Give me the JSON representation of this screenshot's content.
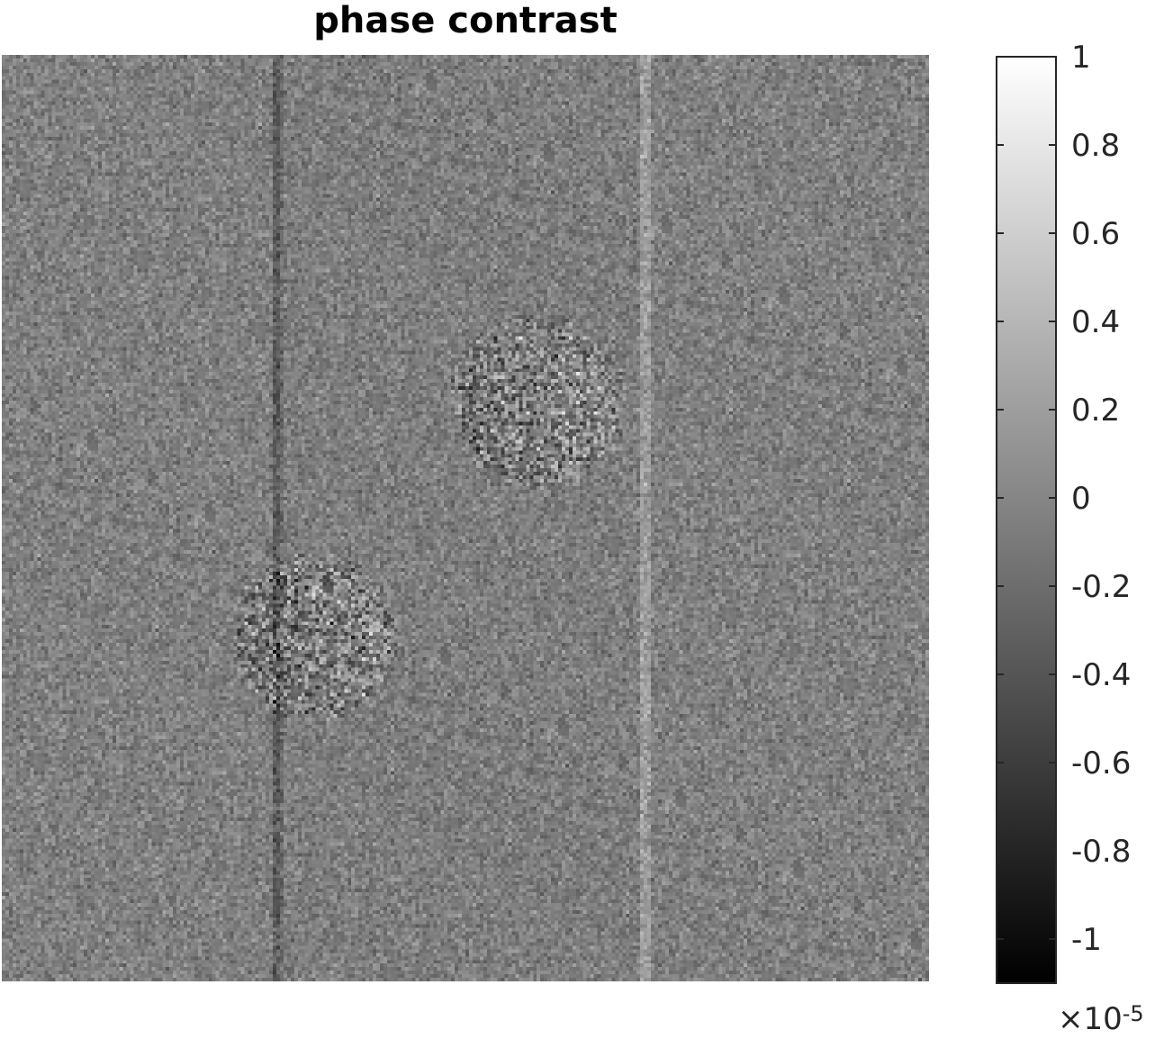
{
  "chart_data": {
    "type": "heatmap",
    "title": "phase contrast",
    "colormap": "gray",
    "colorbar": {
      "clim": [
        -1.1,
        1.0
      ],
      "ticks": [
        1,
        0.8,
        0.6,
        0.4,
        0.2,
        0,
        -0.2,
        -0.4,
        -0.6,
        -0.8,
        -1
      ],
      "tick_labels": [
        "1",
        "0.8",
        "0.6",
        "0.4",
        "0.2",
        "0",
        "-0.2",
        "-0.4",
        "-0.6",
        "-0.8",
        "-1"
      ],
      "exponent_prefix": "×10",
      "exponent": "-5"
    },
    "features": [
      {
        "kind": "vertical-edge",
        "polarity": "dark"
      },
      {
        "kind": "vertical-edge",
        "polarity": "bright"
      },
      {
        "kind": "disc",
        "texture": "high-contrast-speckle"
      },
      {
        "kind": "disc",
        "texture": "high-contrast-speckle"
      }
    ]
  }
}
